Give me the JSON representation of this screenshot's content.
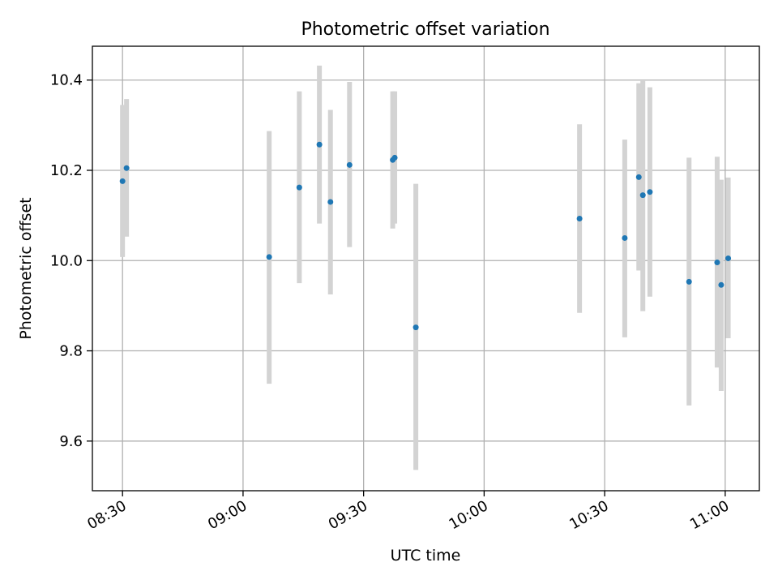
{
  "chart_data": {
    "type": "scatter",
    "title": "Photometric offset variation",
    "xlabel": "UTC time",
    "ylabel": "Photometric offset",
    "x_ticks": [
      "08:30",
      "09:00",
      "09:30",
      "10:00",
      "10:30",
      "11:00"
    ],
    "y_ticks": [
      "9.6",
      "9.8",
      "10.0",
      "10.2",
      "10.4"
    ],
    "xlim": [
      "08:22:30",
      "11:08:30"
    ],
    "ylim": [
      9.49,
      10.475
    ],
    "grid": true,
    "colors": {
      "points": "#1f77b4",
      "error_bars": "#d3d3d3",
      "grid": "#b0b0b0"
    },
    "points": [
      {
        "x": "08:30:00",
        "y": 10.176,
        "ylo": 10.008,
        "yhi": 10.345
      },
      {
        "x": "08:31:00",
        "y": 10.205,
        "ylo": 10.053,
        "yhi": 10.358
      },
      {
        "x": "09:06:30",
        "y": 10.008,
        "ylo": 9.727,
        "yhi": 10.287
      },
      {
        "x": "09:14:00",
        "y": 10.162,
        "ylo": 9.95,
        "yhi": 10.375
      },
      {
        "x": "09:19:00",
        "y": 10.257,
        "ylo": 10.082,
        "yhi": 10.432
      },
      {
        "x": "09:21:45",
        "y": 10.13,
        "ylo": 9.925,
        "yhi": 10.334
      },
      {
        "x": "09:26:30",
        "y": 10.212,
        "ylo": 10.03,
        "yhi": 10.396
      },
      {
        "x": "09:37:15",
        "y": 10.223,
        "ylo": 10.071,
        "yhi": 10.375
      },
      {
        "x": "09:37:45",
        "y": 10.228,
        "ylo": 10.082,
        "yhi": 10.375
      },
      {
        "x": "09:43:00",
        "y": 9.852,
        "ylo": 9.536,
        "yhi": 10.17
      },
      {
        "x": "10:23:45",
        "y": 10.093,
        "ylo": 9.884,
        "yhi": 10.302
      },
      {
        "x": "10:35:00",
        "y": 10.05,
        "ylo": 9.83,
        "yhi": 10.268
      },
      {
        "x": "10:38:30",
        "y": 10.185,
        "ylo": 9.978,
        "yhi": 10.393
      },
      {
        "x": "10:39:30",
        "y": 10.145,
        "ylo": 9.888,
        "yhi": 10.398
      },
      {
        "x": "10:41:15",
        "y": 10.152,
        "ylo": 9.92,
        "yhi": 10.384
      },
      {
        "x": "10:51:00",
        "y": 9.953,
        "ylo": 9.679,
        "yhi": 10.228
      },
      {
        "x": "10:58:00",
        "y": 9.996,
        "ylo": 9.763,
        "yhi": 10.23
      },
      {
        "x": "10:59:00",
        "y": 9.946,
        "ylo": 9.711,
        "yhi": 10.179
      },
      {
        "x": "11:00:45",
        "y": 10.005,
        "ylo": 9.828,
        "yhi": 10.184
      }
    ]
  }
}
